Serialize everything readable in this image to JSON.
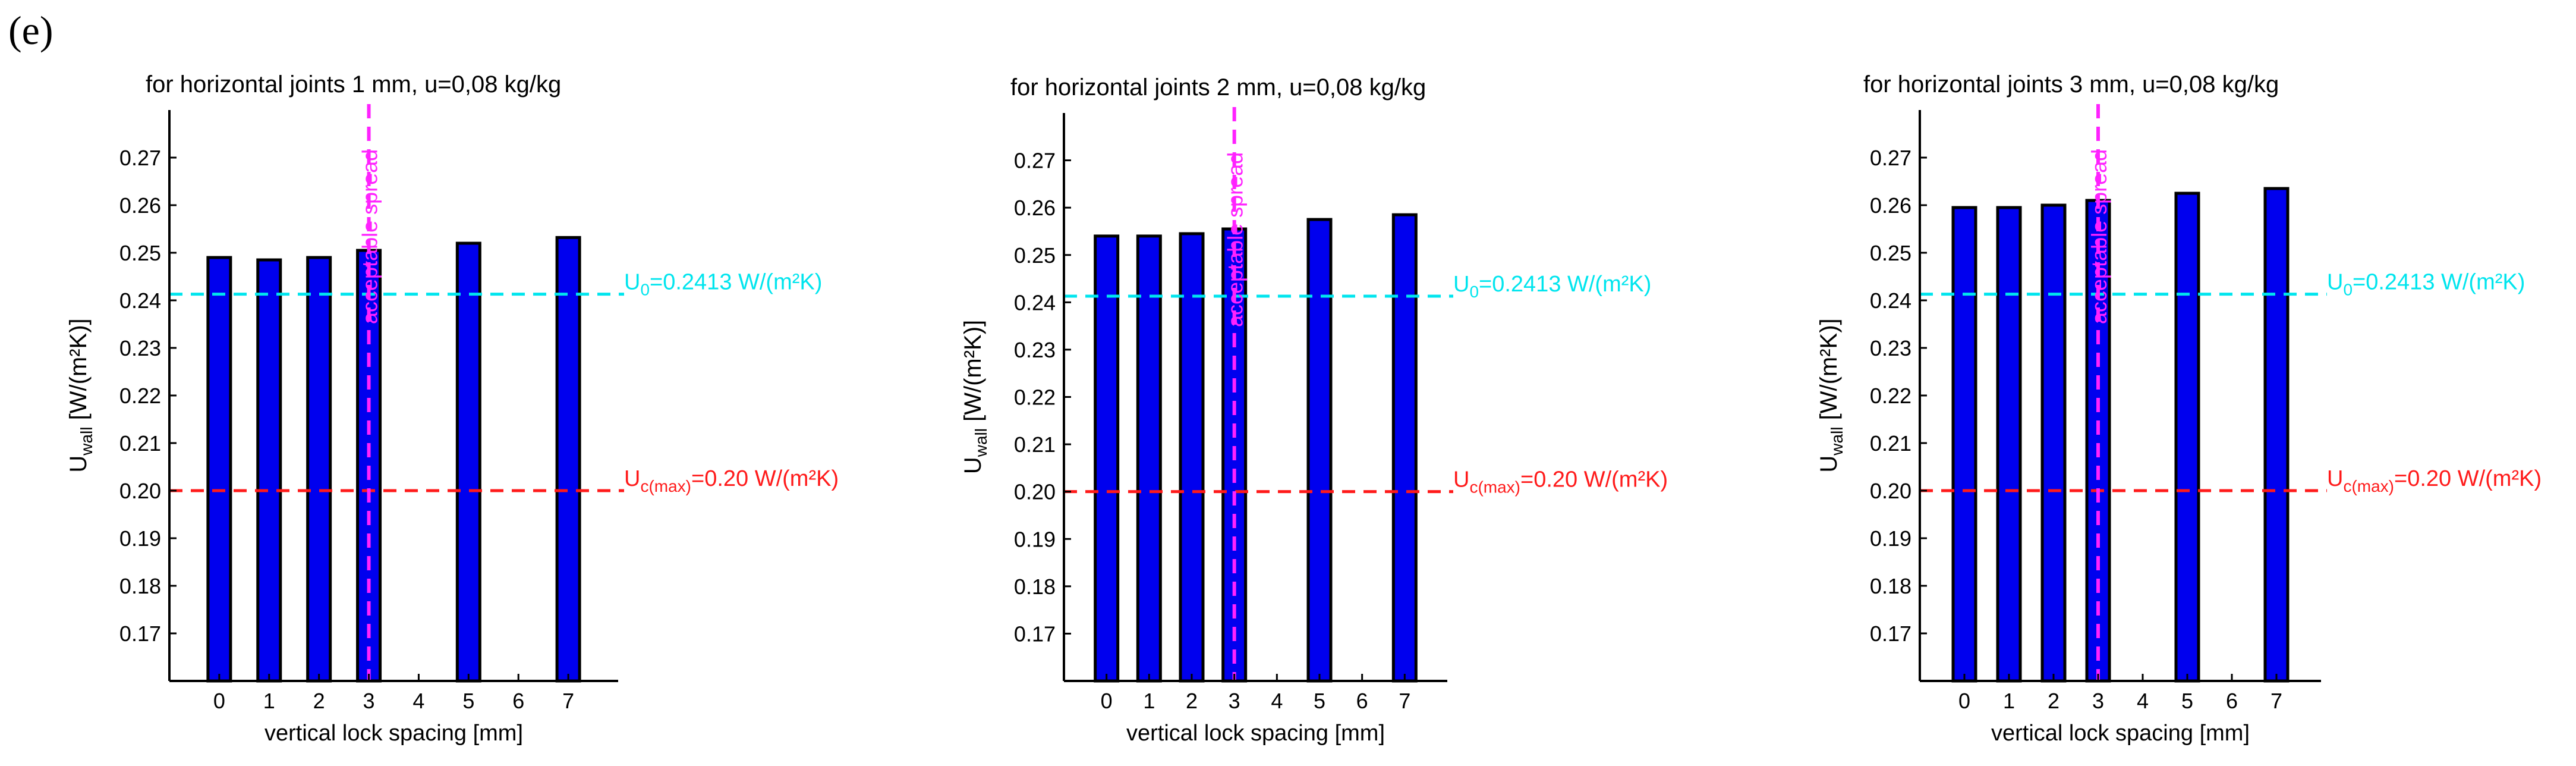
{
  "panel_label": "(e)",
  "colors": {
    "bar": "#0000ee",
    "u0_line": "#00e5ee",
    "uc_line": "#ff1a1a",
    "spread_line": "#ff22ff",
    "axis": "#000000"
  },
  "chart_data": [
    {
      "type": "bar",
      "title": "for horizontal joints 1 mm, u=0,08 kg/kg",
      "xlabel": "vertical lock spacing [mm]",
      "ylabel_main": "U",
      "ylabel_sub": "wall",
      "ylabel_unit": " [W/(m²K)]",
      "x_ticks": [
        "0",
        "1",
        "2",
        "3",
        "4",
        "5",
        "6",
        "7"
      ],
      "x_range": [
        -1,
        8
      ],
      "ylim": [
        0.16,
        0.28
      ],
      "y_ticks": [
        "0.17",
        "0.18",
        "0.19",
        "0.20",
        "0.21",
        "0.22",
        "0.23",
        "0.24",
        "0.25",
        "0.26",
        "0.27"
      ],
      "x": [
        0,
        1,
        2,
        3,
        5,
        7
      ],
      "values": [
        0.249,
        0.2485,
        0.249,
        0.2505,
        0.252,
        0.2532
      ],
      "ref_lines": [
        {
          "value": 0.2413,
          "label_main": "U",
          "label_sub": "0",
          "label_rest": "=0.2413 W/(m²K)",
          "color": "#00e5ee"
        },
        {
          "value": 0.2,
          "label_main": "U",
          "label_sub": "c(max)",
          "label_rest": "=0.20 W/(m²K)",
          "color": "#ff1a1a"
        }
      ],
      "spread_line": {
        "x": 3.0,
        "label": "acceptable spread"
      }
    },
    {
      "type": "bar",
      "title": "for horizontal joints 2 mm, u=0,08 kg/kg",
      "xlabel": "vertical lock spacing [mm]",
      "ylabel_main": "U",
      "ylabel_sub": "wall",
      "ylabel_unit": " [W/(m²K)]",
      "x_ticks": [
        "0",
        "1",
        "2",
        "3",
        "4",
        "5",
        "6",
        "7"
      ],
      "x_range": [
        -1,
        8
      ],
      "ylim": [
        0.16,
        0.28
      ],
      "y_ticks": [
        "0.17",
        "0.18",
        "0.19",
        "0.20",
        "0.21",
        "0.22",
        "0.23",
        "0.24",
        "0.25",
        "0.26",
        "0.27"
      ],
      "x": [
        0,
        1,
        2,
        3,
        5,
        7
      ],
      "values": [
        0.254,
        0.254,
        0.2545,
        0.2555,
        0.2575,
        0.2585
      ],
      "ref_lines": [
        {
          "value": 0.2413,
          "label_main": "U",
          "label_sub": "0",
          "label_rest": "=0.2413 W/(m²K)",
          "color": "#00e5ee"
        },
        {
          "value": 0.2,
          "label_main": "U",
          "label_sub": "c(max)",
          "label_rest": "=0.20 W/(m²K)",
          "color": "#ff1a1a"
        }
      ],
      "spread_line": {
        "x": 3.0,
        "label": "acceptable spread"
      }
    },
    {
      "type": "bar",
      "title": "for horizontal joints 3 mm, u=0,08 kg/kg",
      "xlabel": "vertical lock spacing [mm]",
      "ylabel_main": "U",
      "ylabel_sub": "wall",
      "ylabel_unit": " [W/(m²K)]",
      "x_ticks": [
        "0",
        "1",
        "2",
        "3",
        "4",
        "5",
        "6",
        "7"
      ],
      "x_range": [
        -1,
        8
      ],
      "ylim": [
        0.16,
        0.28
      ],
      "y_ticks": [
        "0.17",
        "0.18",
        "0.19",
        "0.20",
        "0.21",
        "0.22",
        "0.23",
        "0.24",
        "0.25",
        "0.26",
        "0.27"
      ],
      "x": [
        0,
        1,
        2,
        3,
        5,
        7
      ],
      "values": [
        0.2595,
        0.2595,
        0.26,
        0.261,
        0.2625,
        0.2635
      ],
      "ref_lines": [
        {
          "value": 0.2413,
          "label_main": "U",
          "label_sub": "0",
          "label_rest": "=0.2413 W/(m²K)",
          "color": "#00e5ee"
        },
        {
          "value": 0.2,
          "label_main": "U",
          "label_sub": "c(max)",
          "label_rest": "=0.20 W/(m²K)",
          "color": "#ff1a1a"
        }
      ],
      "spread_line": {
        "x": 3.0,
        "label": "acceptable spread"
      }
    }
  ]
}
